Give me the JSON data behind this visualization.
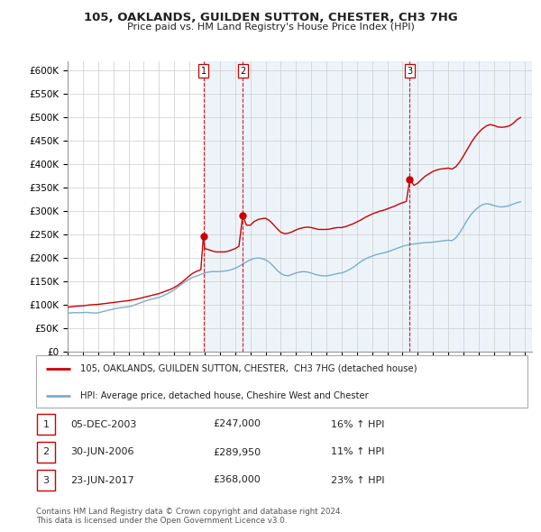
{
  "title": "105, OAKLANDS, GUILDEN SUTTON, CHESTER, CH3 7HG",
  "subtitle": "Price paid vs. HM Land Registry's House Price Index (HPI)",
  "ylim": [
    0,
    620000
  ],
  "yticks": [
    0,
    50000,
    100000,
    150000,
    200000,
    250000,
    300000,
    350000,
    400000,
    450000,
    500000,
    550000,
    600000
  ],
  "ytick_labels": [
    "£0",
    "£50K",
    "£100K",
    "£150K",
    "£200K",
    "£250K",
    "£300K",
    "£350K",
    "£400K",
    "£450K",
    "£500K",
    "£550K",
    "£600K"
  ],
  "xlim_start": 1995.0,
  "xlim_end": 2025.5,
  "red_line_color": "#cc0000",
  "blue_line_color": "#7aadcf",
  "sale_line_color": "#cc0000",
  "sale_marker_color": "#cc0000",
  "legend_label_red": "105, OAKLANDS, GUILDEN SUTTON, CHESTER,  CH3 7HG (detached house)",
  "legend_label_blue": "HPI: Average price, detached house, Cheshire West and Chester",
  "table_rows": [
    {
      "num": "1",
      "date": "05-DEC-2003",
      "price": "£247,000",
      "pct": "16% ↑ HPI"
    },
    {
      "num": "2",
      "date": "30-JUN-2006",
      "price": "£289,950",
      "pct": "11% ↑ HPI"
    },
    {
      "num": "3",
      "date": "23-JUN-2017",
      "price": "£368,000",
      "pct": "23% ↑ HPI"
    }
  ],
  "sales": [
    {
      "year": 2003.92,
      "price": 247000,
      "label": "1"
    },
    {
      "year": 2006.5,
      "price": 289950,
      "label": "2"
    },
    {
      "year": 2017.47,
      "price": 368000,
      "label": "3"
    }
  ],
  "footnote": "Contains HM Land Registry data © Crown copyright and database right 2024.\nThis data is licensed under the Open Government Licence v3.0.",
  "red_data": [
    [
      1995.0,
      95000
    ],
    [
      1995.25,
      96000
    ],
    [
      1995.5,
      97000
    ],
    [
      1995.75,
      97500
    ],
    [
      1996.0,
      98000
    ],
    [
      1996.25,
      99000
    ],
    [
      1996.5,
      100000
    ],
    [
      1996.75,
      100500
    ],
    [
      1997.0,
      101000
    ],
    [
      1997.25,
      102000
    ],
    [
      1997.5,
      103000
    ],
    [
      1997.75,
      104000
    ],
    [
      1998.0,
      105000
    ],
    [
      1998.25,
      106000
    ],
    [
      1998.5,
      107000
    ],
    [
      1998.75,
      108000
    ],
    [
      1999.0,
      109000
    ],
    [
      1999.25,
      110500
    ],
    [
      1999.5,
      112000
    ],
    [
      1999.75,
      114000
    ],
    [
      2000.0,
      116000
    ],
    [
      2000.25,
      118000
    ],
    [
      2000.5,
      120000
    ],
    [
      2000.75,
      122000
    ],
    [
      2001.0,
      124000
    ],
    [
      2001.25,
      127000
    ],
    [
      2001.5,
      130000
    ],
    [
      2001.75,
      133000
    ],
    [
      2002.0,
      137000
    ],
    [
      2002.25,
      142000
    ],
    [
      2002.5,
      148000
    ],
    [
      2002.75,
      155000
    ],
    [
      2003.0,
      162000
    ],
    [
      2003.25,
      168000
    ],
    [
      2003.5,
      172000
    ],
    [
      2003.75,
      175000
    ],
    [
      2003.92,
      247000
    ],
    [
      2004.0,
      220000
    ],
    [
      2004.25,
      218000
    ],
    [
      2004.5,
      215000
    ],
    [
      2004.75,
      213000
    ],
    [
      2005.0,
      213000
    ],
    [
      2005.25,
      213000
    ],
    [
      2005.5,
      214000
    ],
    [
      2005.75,
      217000
    ],
    [
      2006.0,
      220000
    ],
    [
      2006.25,
      225000
    ],
    [
      2006.5,
      289950
    ],
    [
      2006.75,
      270000
    ],
    [
      2007.0,
      270000
    ],
    [
      2007.25,
      278000
    ],
    [
      2007.5,
      282000
    ],
    [
      2007.75,
      284000
    ],
    [
      2008.0,
      285000
    ],
    [
      2008.25,
      280000
    ],
    [
      2008.5,
      272000
    ],
    [
      2008.75,
      263000
    ],
    [
      2009.0,
      255000
    ],
    [
      2009.25,
      252000
    ],
    [
      2009.5,
      253000
    ],
    [
      2009.75,
      256000
    ],
    [
      2010.0,
      260000
    ],
    [
      2010.25,
      263000
    ],
    [
      2010.5,
      265000
    ],
    [
      2010.75,
      266000
    ],
    [
      2011.0,
      265000
    ],
    [
      2011.25,
      263000
    ],
    [
      2011.5,
      261000
    ],
    [
      2011.75,
      261000
    ],
    [
      2012.0,
      261000
    ],
    [
      2012.25,
      262000
    ],
    [
      2012.5,
      264000
    ],
    [
      2012.75,
      265000
    ],
    [
      2013.0,
      265000
    ],
    [
      2013.25,
      267000
    ],
    [
      2013.5,
      270000
    ],
    [
      2013.75,
      273000
    ],
    [
      2014.0,
      277000
    ],
    [
      2014.25,
      281000
    ],
    [
      2014.5,
      286000
    ],
    [
      2014.75,
      290000
    ],
    [
      2015.0,
      294000
    ],
    [
      2015.25,
      297000
    ],
    [
      2015.5,
      300000
    ],
    [
      2015.75,
      302000
    ],
    [
      2016.0,
      305000
    ],
    [
      2016.25,
      308000
    ],
    [
      2016.5,
      311000
    ],
    [
      2016.75,
      315000
    ],
    [
      2017.0,
      318000
    ],
    [
      2017.25,
      321000
    ],
    [
      2017.47,
      368000
    ],
    [
      2017.75,
      355000
    ],
    [
      2018.0,
      360000
    ],
    [
      2018.25,
      368000
    ],
    [
      2018.5,
      375000
    ],
    [
      2018.75,
      380000
    ],
    [
      2019.0,
      385000
    ],
    [
      2019.25,
      388000
    ],
    [
      2019.5,
      390000
    ],
    [
      2019.75,
      391000
    ],
    [
      2020.0,
      392000
    ],
    [
      2020.25,
      390000
    ],
    [
      2020.5,
      395000
    ],
    [
      2020.75,
      405000
    ],
    [
      2021.0,
      418000
    ],
    [
      2021.25,
      432000
    ],
    [
      2021.5,
      446000
    ],
    [
      2021.75,
      458000
    ],
    [
      2022.0,
      468000
    ],
    [
      2022.25,
      476000
    ],
    [
      2022.5,
      482000
    ],
    [
      2022.75,
      485000
    ],
    [
      2023.0,
      483000
    ],
    [
      2023.25,
      480000
    ],
    [
      2023.5,
      479000
    ],
    [
      2023.75,
      480000
    ],
    [
      2024.0,
      482000
    ],
    [
      2024.25,
      487000
    ],
    [
      2024.5,
      495000
    ],
    [
      2024.75,
      500000
    ]
  ],
  "blue_data": [
    [
      1995.0,
      82000
    ],
    [
      1995.25,
      83000
    ],
    [
      1995.5,
      83500
    ],
    [
      1995.75,
      83000
    ],
    [
      1996.0,
      83500
    ],
    [
      1996.25,
      84000
    ],
    [
      1996.5,
      83000
    ],
    [
      1996.75,
      82500
    ],
    [
      1997.0,
      83000
    ],
    [
      1997.25,
      85000
    ],
    [
      1997.5,
      87000
    ],
    [
      1997.75,
      89000
    ],
    [
      1998.0,
      91000
    ],
    [
      1998.25,
      93000
    ],
    [
      1998.5,
      94000
    ],
    [
      1998.75,
      95000
    ],
    [
      1999.0,
      96000
    ],
    [
      1999.25,
      98000
    ],
    [
      1999.5,
      101000
    ],
    [
      1999.75,
      104000
    ],
    [
      2000.0,
      107000
    ],
    [
      2000.25,
      110000
    ],
    [
      2000.5,
      112000
    ],
    [
      2000.75,
      114000
    ],
    [
      2001.0,
      116000
    ],
    [
      2001.25,
      119000
    ],
    [
      2001.5,
      123000
    ],
    [
      2001.75,
      127000
    ],
    [
      2002.0,
      132000
    ],
    [
      2002.25,
      138000
    ],
    [
      2002.5,
      144000
    ],
    [
      2002.75,
      150000
    ],
    [
      2003.0,
      155000
    ],
    [
      2003.25,
      159000
    ],
    [
      2003.5,
      162000
    ],
    [
      2003.75,
      165000
    ],
    [
      2004.0,
      168000
    ],
    [
      2004.25,
      170000
    ],
    [
      2004.5,
      171000
    ],
    [
      2004.75,
      171000
    ],
    [
      2005.0,
      171000
    ],
    [
      2005.25,
      172000
    ],
    [
      2005.5,
      173000
    ],
    [
      2005.75,
      175000
    ],
    [
      2006.0,
      178000
    ],
    [
      2006.25,
      182000
    ],
    [
      2006.5,
      187000
    ],
    [
      2006.75,
      192000
    ],
    [
      2007.0,
      196000
    ],
    [
      2007.25,
      199000
    ],
    [
      2007.5,
      200000
    ],
    [
      2007.75,
      199000
    ],
    [
      2008.0,
      196000
    ],
    [
      2008.25,
      191000
    ],
    [
      2008.5,
      183000
    ],
    [
      2008.75,
      174000
    ],
    [
      2009.0,
      167000
    ],
    [
      2009.25,
      163000
    ],
    [
      2009.5,
      162000
    ],
    [
      2009.75,
      165000
    ],
    [
      2010.0,
      168000
    ],
    [
      2010.25,
      170000
    ],
    [
      2010.5,
      171000
    ],
    [
      2010.75,
      170000
    ],
    [
      2011.0,
      168000
    ],
    [
      2011.25,
      165000
    ],
    [
      2011.5,
      163000
    ],
    [
      2011.75,
      162000
    ],
    [
      2012.0,
      162000
    ],
    [
      2012.25,
      163000
    ],
    [
      2012.5,
      165000
    ],
    [
      2012.75,
      167000
    ],
    [
      2013.0,
      168000
    ],
    [
      2013.25,
      171000
    ],
    [
      2013.5,
      175000
    ],
    [
      2013.75,
      180000
    ],
    [
      2014.0,
      186000
    ],
    [
      2014.25,
      192000
    ],
    [
      2014.5,
      197000
    ],
    [
      2014.75,
      201000
    ],
    [
      2015.0,
      204000
    ],
    [
      2015.25,
      207000
    ],
    [
      2015.5,
      209000
    ],
    [
      2015.75,
      211000
    ],
    [
      2016.0,
      213000
    ],
    [
      2016.25,
      216000
    ],
    [
      2016.5,
      219000
    ],
    [
      2016.75,
      222000
    ],
    [
      2017.0,
      225000
    ],
    [
      2017.25,
      227000
    ],
    [
      2017.5,
      229000
    ],
    [
      2017.75,
      230000
    ],
    [
      2018.0,
      231000
    ],
    [
      2018.25,
      232000
    ],
    [
      2018.5,
      233000
    ],
    [
      2018.75,
      233000
    ],
    [
      2019.0,
      234000
    ],
    [
      2019.25,
      235000
    ],
    [
      2019.5,
      236000
    ],
    [
      2019.75,
      237000
    ],
    [
      2020.0,
      238000
    ],
    [
      2020.25,
      237000
    ],
    [
      2020.5,
      243000
    ],
    [
      2020.75,
      254000
    ],
    [
      2021.0,
      267000
    ],
    [
      2021.25,
      281000
    ],
    [
      2021.5,
      293000
    ],
    [
      2021.75,
      302000
    ],
    [
      2022.0,
      309000
    ],
    [
      2022.25,
      314000
    ],
    [
      2022.5,
      316000
    ],
    [
      2022.75,
      315000
    ],
    [
      2023.0,
      312000
    ],
    [
      2023.25,
      310000
    ],
    [
      2023.5,
      309000
    ],
    [
      2023.75,
      310000
    ],
    [
      2024.0,
      312000
    ],
    [
      2024.25,
      315000
    ],
    [
      2024.5,
      318000
    ],
    [
      2024.75,
      320000
    ]
  ]
}
